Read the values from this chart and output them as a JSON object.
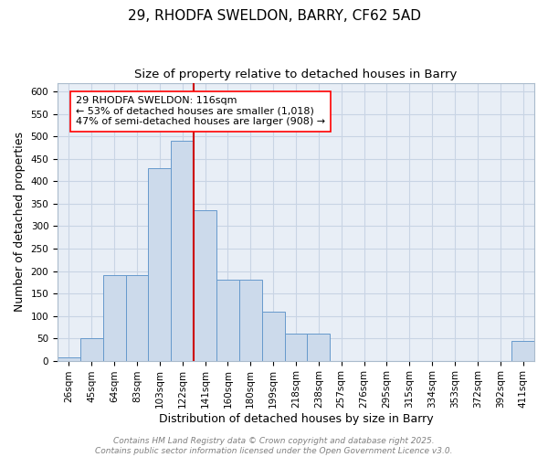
{
  "title": "29, RHODFA SWELDON, BARRY, CF62 5AD",
  "subtitle": "Size of property relative to detached houses in Barry",
  "xlabel": "Distribution of detached houses by size in Barry",
  "ylabel": "Number of detached properties",
  "bar_color": "#ccdaeb",
  "bar_edge_color": "#6699cc",
  "grid_color": "#c8d4e4",
  "background_color": "#e8eef6",
  "categories": [
    "26sqm",
    "45sqm",
    "64sqm",
    "83sqm",
    "103sqm",
    "122sqm",
    "141sqm",
    "160sqm",
    "180sqm",
    "199sqm",
    "218sqm",
    "238sqm",
    "257sqm",
    "276sqm",
    "295sqm",
    "315sqm",
    "334sqm",
    "353sqm",
    "372sqm",
    "392sqm",
    "411sqm"
  ],
  "values": [
    8,
    50,
    190,
    190,
    430,
    490,
    335,
    180,
    180,
    110,
    60,
    60,
    0,
    0,
    0,
    0,
    0,
    0,
    0,
    0,
    45
  ],
  "property_line_index": 5,
  "property_line_color": "#cc0000",
  "ylim": [
    0,
    620
  ],
  "yticks": [
    0,
    50,
    100,
    150,
    200,
    250,
    300,
    350,
    400,
    450,
    500,
    550,
    600
  ],
  "annotation_line1": "29 RHODFA SWELDON: 116sqm",
  "annotation_line2": "← 53% of detached houses are smaller (1,018)",
  "annotation_line3": "47% of semi-detached houses are larger (908) →",
  "footer_text": "Contains HM Land Registry data © Crown copyright and database right 2025.\nContains public sector information licensed under the Open Government Licence v3.0.",
  "title_fontsize": 11,
  "subtitle_fontsize": 9.5,
  "axis_label_fontsize": 9,
  "tick_fontsize": 7.5,
  "annotation_fontsize": 8,
  "footer_fontsize": 6.5
}
